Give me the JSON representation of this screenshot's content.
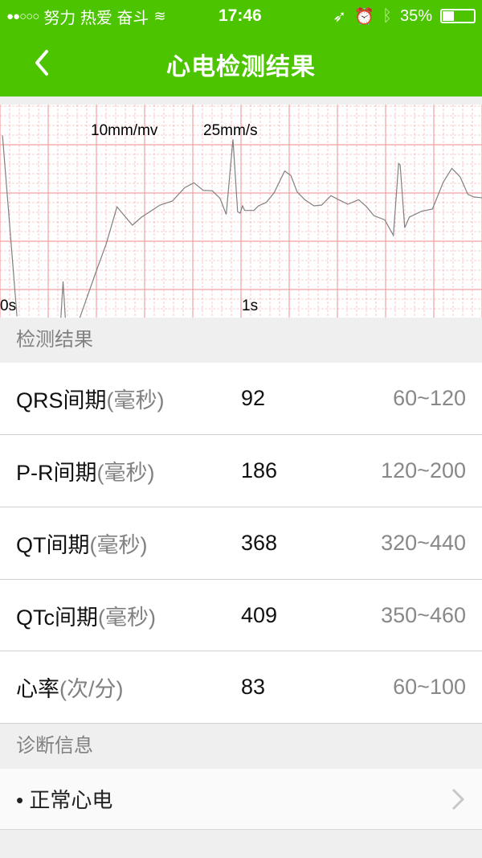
{
  "status": {
    "carrier": "努力 热爱 奋斗",
    "time": "17:46",
    "battery": "35%",
    "battery_level": 0.35,
    "signal_bars": 2
  },
  "header": {
    "title": "心电检测结果"
  },
  "ecg": {
    "gain": "10mm/mv",
    "speed": "25mm/s",
    "t0": "0s",
    "t1": "1s",
    "grid_color": "#f4a0a0",
    "trace_color": "#808080"
  },
  "results": {
    "header": "检测结果",
    "rows": [
      {
        "name": "QRS间期",
        "unit": "(毫秒)",
        "value": "92",
        "range": "60~120"
      },
      {
        "name": "P-R间期",
        "unit": "(毫秒)",
        "value": "186",
        "range": "120~200"
      },
      {
        "name": "QT间期",
        "unit": "(毫秒)",
        "value": "368",
        "range": "320~440"
      },
      {
        "name": "QTc间期",
        "unit": "(毫秒)",
        "value": "409",
        "range": "350~460"
      },
      {
        "name": "心率",
        "unit": "(次/分)",
        "value": "83",
        "range": "60~100"
      }
    ]
  },
  "diagnosis": {
    "header": "诊断信息",
    "item": "• 正常心电"
  },
  "colors": {
    "brand": "#4cc400"
  }
}
